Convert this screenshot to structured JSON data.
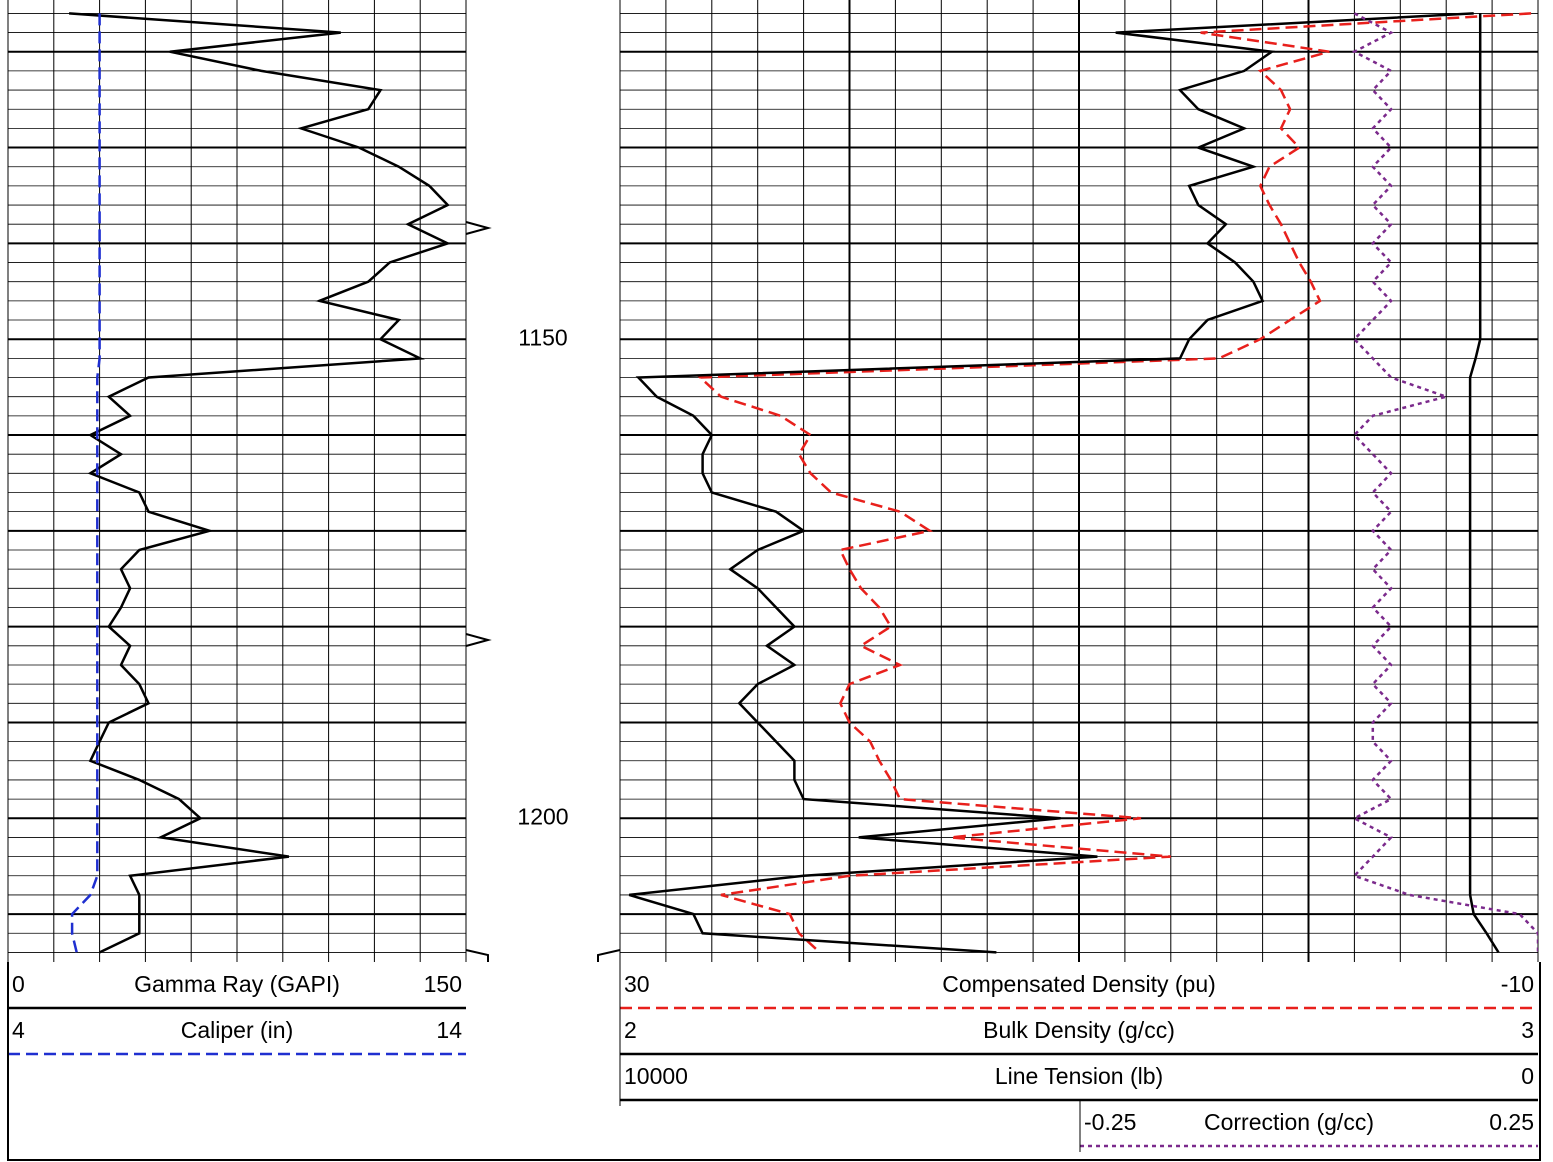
{
  "chart_data": {
    "type": "well-log",
    "depths": [
      1116,
      1118,
      1120,
      1122,
      1124,
      1126,
      1128,
      1130,
      1132,
      1134,
      1136,
      1138,
      1140,
      1142,
      1144,
      1146,
      1148,
      1150,
      1152,
      1154,
      1156,
      1158,
      1160,
      1162,
      1164,
      1166,
      1168,
      1170,
      1172,
      1174,
      1176,
      1178,
      1180,
      1182,
      1184,
      1186,
      1188,
      1190,
      1192,
      1194,
      1196,
      1198,
      1200,
      1202,
      1204,
      1206,
      1208,
      1210,
      1212,
      1214
    ],
    "ylim": [
      1114.6,
      1215.0
    ],
    "depth_labels": [
      1150,
      1200
    ],
    "major_grid": [
      1120,
      1130,
      1140,
      1150,
      1160,
      1170,
      1180,
      1190,
      1200,
      1210
    ],
    "minor_grid": [
      1116,
      1118,
      1122,
      1124,
      1126,
      1128,
      1132,
      1134,
      1136,
      1138,
      1142,
      1144,
      1146,
      1148,
      1152,
      1154,
      1156,
      1158,
      1162,
      1164,
      1166,
      1168,
      1172,
      1174,
      1176,
      1178,
      1182,
      1184,
      1186,
      1188,
      1192,
      1194,
      1196,
      1198,
      1202,
      1204,
      1206,
      1208,
      1212,
      1214
    ],
    "tracks": [
      {
        "xticks": [
          0,
          15,
          30,
          45,
          60,
          75,
          90,
          105,
          120,
          135,
          150
        ],
        "series": [
          {
            "name": "Gamma Ray (GAPI)",
            "color": "#000000",
            "dash": "solid",
            "xlim": [
              0,
              150
            ],
            "values": [
              20,
              109,
              53,
              83,
              122,
              118,
              96,
              115,
              128,
              138,
              144,
              131,
              144,
              125,
              118,
              102,
              128,
              122,
              135,
              46,
              33,
              40,
              27,
              37,
              27,
              43,
              46,
              66,
              43,
              37,
              40,
              37,
              33,
              40,
              37,
              43,
              46,
              33,
              30,
              27,
              43,
              56,
              63,
              50,
              92,
              40,
              43,
              43,
              43,
              30
            ]
          },
          {
            "name": "Caliper (in)",
            "color": "#1f2fd0",
            "dash": "dashed",
            "xlim": [
              4,
              14
            ],
            "values": [
              6.0,
              6.0,
              6.0,
              6.0,
              6.0,
              6.0,
              6.0,
              6.0,
              6.0,
              6.0,
              6.0,
              6.0,
              6.0,
              6.0,
              6.0,
              6.0,
              6.0,
              6.0,
              6.0,
              5.95,
              5.95,
              5.95,
              5.95,
              5.95,
              5.95,
              5.95,
              5.95,
              5.95,
              5.95,
              5.95,
              5.95,
              5.95,
              5.95,
              5.95,
              5.95,
              5.95,
              5.95,
              5.95,
              5.95,
              5.95,
              5.95,
              5.95,
              5.95,
              5.95,
              5.95,
              5.95,
              5.8,
              5.4,
              5.4,
              5.5
            ]
          }
        ]
      },
      {
        "xticks": [
          2,
          2.05,
          2.1,
          2.15,
          2.2,
          2.25,
          2.3,
          2.35,
          2.4,
          2.45,
          2.5,
          2.55,
          2.6,
          2.65,
          2.7,
          2.75,
          2.8,
          2.85,
          2.9,
          2.95,
          3
        ],
        "major_xticks": [
          2.25,
          2.5,
          2.75
        ],
        "series": [
          {
            "name": "Compensated Density (pu)",
            "color": "#e8201c",
            "dash": "dashed",
            "xlim": [
              30,
              -10
            ],
            "values": [
              -9.7,
              4.7,
              -0.9,
              2.1,
              1.2,
              0.8,
              1.2,
              0.4,
              1.7,
              2.1,
              1.7,
              1.2,
              0.8,
              0.4,
              -0.1,
              -0.5,
              0.8,
              2.1,
              3.9,
              26.5,
              25.6,
              23.0,
              21.7,
              22.2,
              21.7,
              20.8,
              17.8,
              16.5,
              20.4,
              20.0,
              19.5,
              18.7,
              18.2,
              19.5,
              17.8,
              20.0,
              20.4,
              20.0,
              19.1,
              18.7,
              18.2,
              17.8,
              7.3,
              15.6,
              6.0,
              20.0,
              25.6,
              22.6,
              22.2,
              21.3
            ]
          },
          {
            "name": "Bulk Density (g/cc)",
            "color": "#000000",
            "dash": "solid",
            "xlim": [
              2,
              3
            ],
            "values": [
              2.93,
              2.54,
              2.71,
              2.68,
              2.61,
              2.63,
              2.68,
              2.63,
              2.69,
              2.62,
              2.63,
              2.66,
              2.64,
              2.67,
              2.69,
              2.7,
              2.64,
              2.62,
              2.61,
              2.02,
              2.04,
              2.08,
              2.1,
              2.09,
              2.09,
              2.1,
              2.17,
              2.2,
              2.15,
              2.12,
              2.15,
              2.17,
              2.19,
              2.16,
              2.19,
              2.15,
              2.13,
              2.15,
              2.17,
              2.19,
              2.19,
              2.2,
              2.48,
              2.26,
              2.52,
              2.2,
              2.01,
              2.08,
              2.09,
              2.41
            ]
          },
          {
            "name": "Line Tension (lb)",
            "color": "#000000",
            "dash": "solid",
            "xlim": [
              10000,
              0
            ],
            "values": [
              630,
              630,
              630,
              630,
              630,
              630,
              630,
              630,
              630,
              630,
              630,
              630,
              630,
              630,
              630,
              630,
              630,
              630,
              680,
              740,
              740,
              740,
              740,
              740,
              740,
              740,
              740,
              740,
              740,
              740,
              740,
              740,
              740,
              740,
              740,
              740,
              740,
              740,
              740,
              740,
              740,
              740,
              740,
              740,
              740,
              740,
              740,
              700,
              560,
              430
            ]
          },
          {
            "name": "Correction (g/cc)",
            "color": "#7b2a8c",
            "dash": "dotted",
            "xlim": [
              -0.25,
              0.25
            ],
            "values": [
              0.15,
              0.17,
              0.15,
              0.17,
              0.16,
              0.17,
              0.16,
              0.17,
              0.16,
              0.17,
              0.16,
              0.17,
              0.16,
              0.17,
              0.16,
              0.17,
              0.16,
              0.15,
              0.16,
              0.17,
              0.2,
              0.16,
              0.15,
              0.16,
              0.17,
              0.16,
              0.17,
              0.16,
              0.17,
              0.16,
              0.17,
              0.16,
              0.17,
              0.16,
              0.17,
              0.16,
              0.17,
              0.16,
              0.16,
              0.17,
              0.16,
              0.17,
              0.15,
              0.17,
              0.16,
              0.15,
              0.18,
              0.24,
              0.25,
              0.25
            ]
          }
        ]
      }
    ]
  }
}
